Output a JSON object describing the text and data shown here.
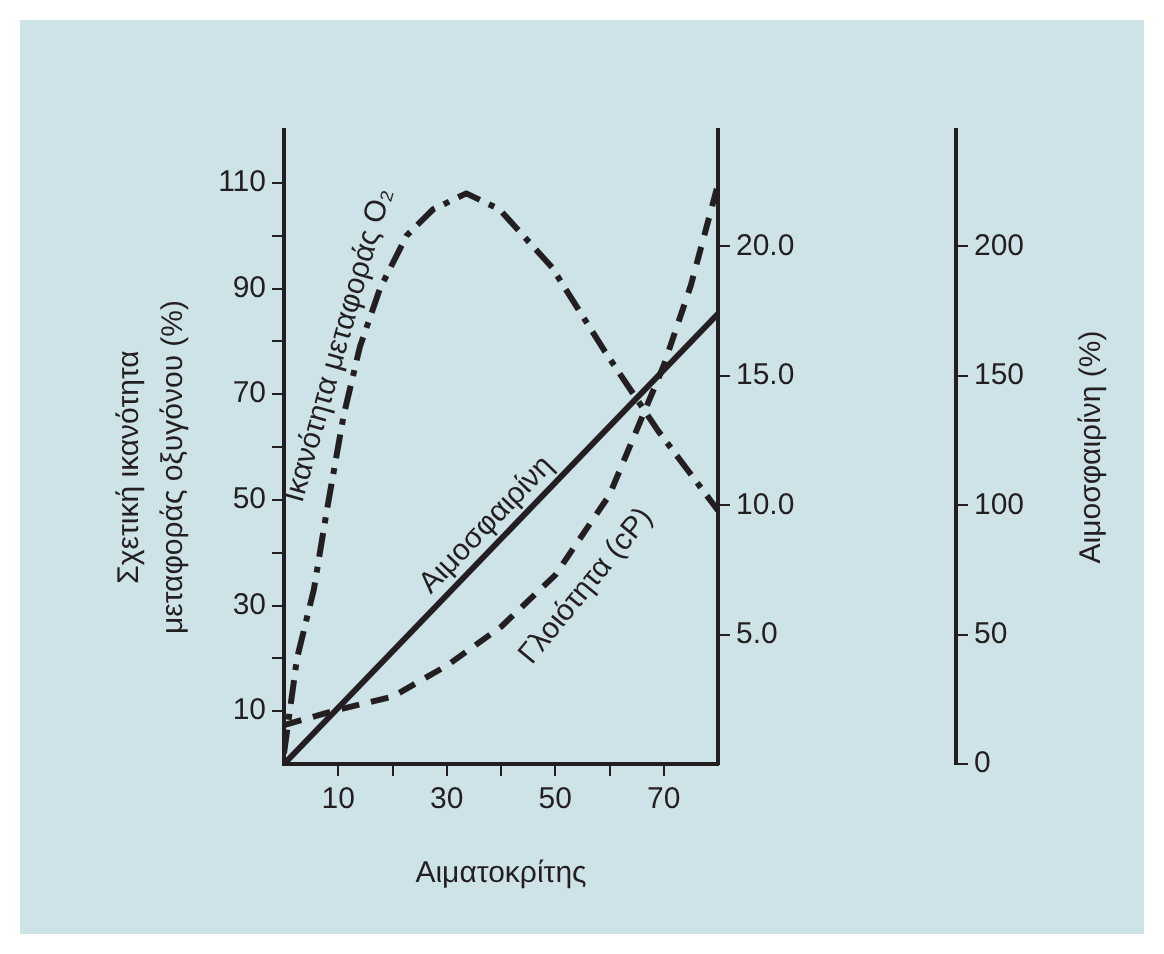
{
  "chart_data": {
    "type": "line",
    "xlabel": "Αιματοκρίτης",
    "ylabel": "Σχετική ικανότητα\nμεταφοράς οξυγόνου (%)",
    "y3label": "Αιμοσφαιρίνη (%)",
    "xlim": [
      0,
      80
    ],
    "xticks": [
      10,
      {
        "value": 20,
        "label": null
      },
      30,
      {
        "value": 40,
        "label": null
      },
      50,
      {
        "value": 60,
        "label": null
      },
      70
    ],
    "ylim": [
      0,
      120
    ],
    "yticks": [
      10,
      {
        "value": 20,
        "label": null
      },
      30,
      {
        "value": 40,
        "label": null
      },
      50,
      {
        "value": 60,
        "label": null
      },
      70,
      {
        "value": 80,
        "label": null
      },
      90,
      {
        "value": 100,
        "label": null
      },
      110
    ],
    "y2lim": [
      0,
      24.5
    ],
    "y2ticks": [
      {
        "value": 5,
        "label": "5.0"
      },
      {
        "value": 10,
        "label": "10.0"
      },
      {
        "value": 15,
        "label": "15.0"
      },
      {
        "value": 20,
        "label": "20.0"
      }
    ],
    "y3lim": [
      0,
      245
    ],
    "y3ticks": [
      0,
      50,
      100,
      150,
      200
    ],
    "grid": false,
    "marker": "none",
    "series": [
      {
        "name": "Ικανότητα μεταφοράς O₂",
        "color": "#231f20",
        "line_style": "dashdot",
        "x": [
          0,
          2.4,
          5.5,
          7.9,
          11,
          14,
          17.7,
          22.6,
          27.5,
          33.6,
          39.7,
          49.4,
          59.2,
          69,
          80
        ],
        "values": [
          2,
          20,
          33,
          48,
          66,
          79,
          90,
          100,
          105,
          108,
          105,
          94,
          78,
          63,
          48
        ]
      },
      {
        "name": "Αιμοσφαιρίνη",
        "color": "#231f20",
        "line_style": "solid",
        "axis": "y3",
        "x": [
          0,
          80
        ],
        "values": [
          0,
          174
        ]
      },
      {
        "name": "Γλοιότητα (cP)",
        "color": "#231f20",
        "line_style": "dashed",
        "axis": "y2",
        "x": [
          0,
          10,
          20,
          30,
          40,
          50,
          60,
          66.4,
          70,
          75,
          80
        ],
        "values": [
          1.5,
          2.1,
          2.6,
          3.8,
          5.3,
          7.3,
          10.4,
          13.6,
          15.4,
          18.5,
          22.4
        ]
      }
    ]
  }
}
